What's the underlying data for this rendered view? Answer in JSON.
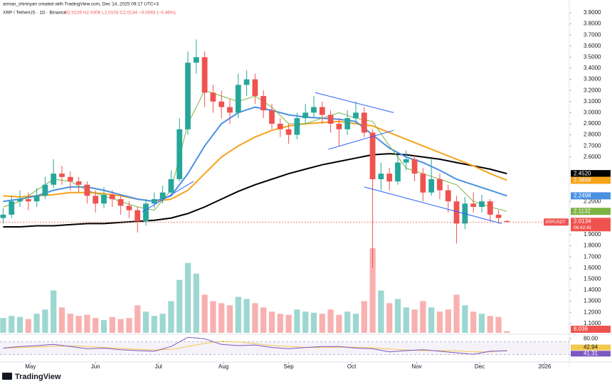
{
  "chart_data": {
    "type": "candlestick",
    "subtitle": "arman_shirinyan created with TradingView.com, Dec 14, 2025 09:17 UTC+3",
    "title": "XRP / TetherUS · 1D · Binance",
    "ohlc_text": "O2.0226 H2.0306 L2.0103 C2.0134 −0.0093 (−0.46%)",
    "brand": "TradingView",
    "up_color": "#26a69a",
    "down_color": "#ef5350",
    "grid": false,
    "xlim": [
      106.5,
      377.7
    ],
    "xticks": [
      {
        "value": 121,
        "label": "May"
      },
      {
        "value": 152,
        "label": "Jun"
      },
      {
        "value": 182,
        "label": "Jul"
      },
      {
        "value": 213,
        "label": "Aug"
      },
      {
        "value": 244,
        "label": "Sep"
      },
      {
        "value": 274,
        "label": "Oct"
      },
      {
        "value": 305,
        "label": "Nov"
      },
      {
        "value": 335,
        "label": "Dec"
      },
      {
        "value": 366,
        "label": "2026"
      }
    ],
    "ylim": [
      1.015,
      3.964
    ],
    "yticks": [
      {
        "value": 1.1,
        "label": "1.1000"
      },
      {
        "value": 1.2,
        "label": "1.2000"
      },
      {
        "value": 1.3,
        "label": "1.3000"
      },
      {
        "value": 1.4,
        "label": "1.4000"
      },
      {
        "value": 1.5,
        "label": "1.5000"
      },
      {
        "value": 1.6,
        "label": "1.6000"
      },
      {
        "value": 1.7,
        "label": "1.7000"
      },
      {
        "value": 1.8,
        "label": "1.8000"
      },
      {
        "value": 1.9,
        "label": "1.9000"
      },
      {
        "value": 2.2,
        "label": "2.2000"
      },
      {
        "value": 2.6,
        "label": "2.6000"
      },
      {
        "value": 2.7,
        "label": "2.7000"
      },
      {
        "value": 2.8,
        "label": "2.8000"
      },
      {
        "value": 2.9,
        "label": "2.9000"
      },
      {
        "value": 3.0,
        "label": "3.0000"
      },
      {
        "value": 3.1,
        "label": "3.1000"
      },
      {
        "value": 3.2,
        "label": "3.2000"
      },
      {
        "value": 3.3,
        "label": "3.3000"
      },
      {
        "value": 3.4,
        "label": "3.4000"
      },
      {
        "value": 3.5,
        "label": "3.5000"
      },
      {
        "value": 3.6,
        "label": "3.6000"
      },
      {
        "value": 3.7,
        "label": "3.7000"
      },
      {
        "value": 3.8,
        "label": "3.8000"
      },
      {
        "value": 3.9,
        "label": "3.9000"
      }
    ],
    "x": [
      108,
      112,
      116,
      120,
      124,
      128,
      132,
      136,
      140,
      144,
      148,
      152,
      156,
      160,
      164,
      168,
      172,
      176,
      180,
      184,
      188,
      192,
      196,
      200,
      204,
      208,
      212,
      216,
      220,
      224,
      228,
      232,
      236,
      240,
      244,
      248,
      252,
      256,
      260,
      264,
      268,
      272,
      276,
      280,
      284,
      288,
      292,
      296,
      300,
      304,
      308,
      312,
      316,
      320,
      324,
      328,
      332,
      336,
      340,
      344,
      348
    ],
    "open": [
      2.05,
      2.08,
      2.2,
      2.22,
      2.2,
      2.25,
      2.35,
      2.45,
      2.42,
      2.38,
      2.35,
      2.25,
      2.18,
      2.26,
      2.22,
      2.16,
      2.12,
      2.02,
      2.18,
      2.22,
      2.28,
      2.4,
      2.85,
      3.45,
      3.5,
      3.18,
      3.1,
      3.05,
      3.0,
      3.25,
      3.3,
      3.15,
      3.02,
      2.9,
      2.85,
      2.8,
      2.95,
      3.0,
      3.05,
      2.98,
      2.9,
      2.85,
      2.95,
      3.0,
      2.82,
      2.4,
      2.45,
      2.38,
      2.55,
      2.58,
      2.45,
      2.28,
      2.4,
      2.3,
      2.2,
      2.0,
      2.18,
      2.15,
      2.2,
      2.08,
      2.0226
    ],
    "high": [
      2.14,
      2.25,
      2.3,
      2.28,
      2.32,
      2.42,
      2.58,
      2.52,
      2.47,
      2.42,
      2.38,
      2.3,
      2.33,
      2.3,
      2.25,
      2.2,
      2.15,
      2.22,
      2.28,
      2.34,
      2.48,
      2.95,
      3.55,
      3.66,
      3.55,
      3.25,
      3.2,
      3.12,
      3.35,
      3.38,
      3.35,
      3.2,
      3.08,
      2.95,
      2.9,
      3.0,
      3.08,
      3.15,
      3.1,
      3.02,
      2.95,
      3.02,
      3.1,
      3.05,
      2.85,
      2.55,
      2.5,
      2.62,
      2.66,
      2.62,
      2.5,
      2.58,
      2.45,
      2.35,
      2.25,
      2.24,
      2.28,
      2.26,
      2.22,
      2.12,
      2.0306
    ],
    "low": [
      2.0,
      2.05,
      2.15,
      2.12,
      2.15,
      2.22,
      2.32,
      2.35,
      2.3,
      2.28,
      2.18,
      2.1,
      2.14,
      2.15,
      2.08,
      2.05,
      1.92,
      1.98,
      2.14,
      2.18,
      2.25,
      2.38,
      2.8,
      3.35,
      3.05,
      3.0,
      2.95,
      2.9,
      2.95,
      3.15,
      3.08,
      2.95,
      2.85,
      2.78,
      2.72,
      2.76,
      2.9,
      2.95,
      2.9,
      2.82,
      2.7,
      2.8,
      2.9,
      2.78,
      1.6,
      2.3,
      2.3,
      2.35,
      2.48,
      2.38,
      2.2,
      2.25,
      2.22,
      2.1,
      1.82,
      1.95,
      2.1,
      2.1,
      2.02,
      2.0,
      2.0103
    ],
    "close": [
      2.08,
      2.2,
      2.22,
      2.2,
      2.25,
      2.35,
      2.45,
      2.42,
      2.38,
      2.35,
      2.25,
      2.18,
      2.26,
      2.22,
      2.16,
      2.12,
      2.02,
      2.18,
      2.22,
      2.28,
      2.4,
      2.85,
      3.45,
      3.5,
      3.18,
      3.1,
      3.05,
      3.0,
      3.25,
      3.3,
      3.15,
      3.02,
      2.9,
      2.85,
      2.8,
      2.95,
      3.0,
      3.05,
      2.98,
      2.9,
      2.85,
      2.95,
      3.0,
      2.82,
      2.4,
      2.45,
      2.38,
      2.55,
      2.58,
      2.45,
      2.28,
      2.4,
      2.3,
      2.2,
      2.0,
      2.18,
      2.15,
      2.2,
      2.08,
      2.05,
      2.0134
    ],
    "volume": [
      70,
      80,
      75,
      65,
      90,
      110,
      200,
      120,
      90,
      80,
      85,
      70,
      60,
      75,
      65,
      70,
      130,
      100,
      80,
      90,
      150,
      250,
      330,
      280,
      180,
      150,
      140,
      130,
      170,
      160,
      140,
      120,
      100,
      90,
      85,
      110,
      100,
      95,
      90,
      110,
      85,
      100,
      90,
      150,
      400,
      200,
      140,
      160,
      120,
      110,
      150,
      120,
      100,
      110,
      180,
      130,
      100,
      90,
      80,
      75,
      8.036
    ],
    "volume_ylim": [
      0,
      420
    ],
    "volume_label": "8.036",
    "series": [
      {
        "color": "#000000",
        "last_label": "2.4520",
        "x": [
          108,
          116,
          124,
          132,
          140,
          148,
          156,
          164,
          172,
          180,
          188,
          196,
          204,
          212,
          220,
          228,
          236,
          244,
          252,
          260,
          268,
          276,
          284,
          292,
          300,
          308,
          316,
          324,
          332,
          340,
          348
        ],
        "values": [
          1.97,
          1.97,
          1.98,
          1.98,
          1.99,
          2.0,
          2.0,
          2.01,
          2.02,
          2.03,
          2.05,
          2.09,
          2.15,
          2.22,
          2.29,
          2.35,
          2.4,
          2.45,
          2.49,
          2.53,
          2.56,
          2.59,
          2.62,
          2.63,
          2.62,
          2.6,
          2.58,
          2.55,
          2.52,
          2.49,
          2.45
        ]
      },
      {
        "color": "#f7a21b",
        "last_label": "2.3899",
        "x": [
          108,
          116,
          124,
          132,
          140,
          148,
          156,
          164,
          172,
          180,
          188,
          196,
          204,
          212,
          220,
          228,
          236,
          244,
          252,
          260,
          268,
          276,
          284,
          292,
          300,
          308,
          316,
          324,
          332,
          340,
          348
        ],
        "values": [
          2.25,
          2.24,
          2.25,
          2.26,
          2.28,
          2.28,
          2.27,
          2.25,
          2.22,
          2.2,
          2.22,
          2.3,
          2.45,
          2.6,
          2.7,
          2.78,
          2.84,
          2.88,
          2.9,
          2.91,
          2.92,
          2.9,
          2.88,
          2.82,
          2.76,
          2.7,
          2.64,
          2.58,
          2.52,
          2.45,
          2.39
        ]
      },
      {
        "color": "#4a90e2",
        "last_label": "2.2498",
        "x": [
          108,
          116,
          124,
          132,
          140,
          148,
          156,
          164,
          172,
          180,
          188,
          196,
          204,
          212,
          220,
          228,
          236,
          244,
          252,
          260,
          268,
          276,
          284,
          292,
          300,
          308,
          316,
          324,
          332,
          340,
          348
        ],
        "values": [
          2.2,
          2.22,
          2.25,
          2.3,
          2.33,
          2.33,
          2.3,
          2.26,
          2.22,
          2.2,
          2.25,
          2.45,
          2.7,
          2.9,
          3.0,
          3.05,
          3.02,
          2.98,
          2.96,
          2.95,
          2.94,
          2.92,
          2.8,
          2.68,
          2.6,
          2.55,
          2.48,
          2.4,
          2.35,
          2.3,
          2.25
        ]
      },
      {
        "color": "#7cb342",
        "last_label": "2.1132",
        "x": [
          108,
          116,
          124,
          132,
          140,
          148,
          156,
          164,
          172,
          180,
          188,
          196,
          204,
          212,
          220,
          228,
          236,
          244,
          252,
          260,
          268,
          276,
          284,
          292,
          300,
          308,
          316,
          324,
          332,
          340,
          348
        ],
        "values": [
          2.15,
          2.2,
          2.3,
          2.4,
          2.38,
          2.3,
          2.25,
          2.2,
          2.15,
          2.12,
          2.3,
          2.9,
          3.2,
          3.15,
          3.1,
          3.15,
          3.05,
          2.9,
          2.9,
          2.95,
          3.0,
          2.95,
          2.92,
          2.7,
          2.5,
          2.45,
          2.4,
          2.35,
          2.2,
          2.15,
          2.11
        ]
      }
    ],
    "drawings": [
      {
        "color": "#2962ff",
        "x": [
          174.3,
          198.7
        ],
        "y": [
          2.105,
          2.38
        ]
      },
      {
        "color": "#2962ff",
        "x": [
          256.7,
          294.0
        ],
        "y": [
          3.18,
          3.0
        ]
      },
      {
        "color": "#2962ff",
        "x": [
          263.0,
          294.0
        ],
        "y": [
          2.67,
          2.84
        ]
      },
      {
        "color": "#2962ff",
        "x": [
          280.0,
          345.5
        ],
        "y": [
          2.33,
          2.0
        ]
      }
    ],
    "price_tag": {
      "name": "XRPUSDT",
      "value": 2.0134,
      "label": "2.0134",
      "countdown": "06:42:41",
      "color": "#ef5350"
    },
    "rsi": {
      "ylim": [
        10,
        90
      ],
      "yticks": [
        {
          "value": 80,
          "label": "80.00"
        }
      ],
      "band": [
        30,
        70
      ],
      "x": [
        108,
        116,
        124,
        132,
        140,
        148,
        156,
        164,
        172,
        180,
        188,
        196,
        204,
        212,
        220,
        228,
        236,
        244,
        252,
        260,
        268,
        276,
        284,
        292,
        300,
        308,
        316,
        324,
        332,
        340,
        348
      ],
      "values": [
        50,
        55,
        58,
        62,
        55,
        48,
        50,
        45,
        42,
        40,
        55,
        85,
        80,
        62,
        58,
        60,
        52,
        48,
        52,
        55,
        55,
        50,
        48,
        38,
        42,
        45,
        40,
        35,
        30,
        40,
        41.31
      ],
      "ma": [
        50,
        52,
        54,
        56,
        57,
        55,
        52,
        49,
        46,
        44,
        46,
        55,
        65,
        72,
        70,
        64,
        58,
        55,
        52,
        52,
        53,
        53,
        51,
        47,
        44,
        42,
        42,
        41,
        38,
        38,
        42.94
      ],
      "color": "#7e57c2",
      "ma_color": "#f2c94c",
      "last_label": "41.31",
      "ma_last_label": "42.94"
    }
  }
}
